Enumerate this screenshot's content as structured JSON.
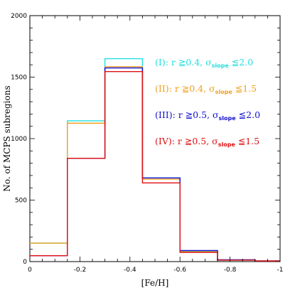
{
  "chart_data": {
    "type": "histogram",
    "xlabel": "[Fe/H]",
    "ylabel": "No. of MCPS subregions",
    "xlim": [
      0,
      -1
    ],
    "ylim": [
      0,
      2000
    ],
    "x_ticks": [
      0,
      -0.2,
      -0.4,
      -0.6,
      -0.8,
      -1
    ],
    "x_tick_labels": [
      "0",
      "-0.2",
      "-0.4",
      "-0.6",
      "-0.8",
      "-1"
    ],
    "y_ticks": [
      0,
      500,
      1000,
      1500,
      2000
    ],
    "y_tick_labels": [
      "0",
      "500",
      "1000",
      "1500",
      "2000"
    ],
    "bin_edges": [
      0,
      -0.15,
      -0.3,
      -0.45,
      -0.6,
      -0.75,
      -0.9,
      -1.0
    ],
    "series": [
      {
        "color": "#22e0e0",
        "values": [
          150,
          1145,
          1650,
          680,
          85,
          12,
          5
        ]
      },
      {
        "color": "#f0a020",
        "values": [
          150,
          1125,
          1585,
          670,
          80,
          12,
          5
        ]
      },
      {
        "color": "#1010d0",
        "values": [
          48,
          840,
          1575,
          680,
          90,
          15,
          5
        ]
      },
      {
        "color": "#e01010",
        "values": [
          48,
          840,
          1545,
          640,
          75,
          12,
          5
        ]
      }
    ],
    "legend": [
      {
        "id": "I",
        "color": "#22e0e0",
        "prefix": "(I): r ≧0.4, σ",
        "sub": "slope",
        "suffix": " ≦2.0"
      },
      {
        "id": "II",
        "color": "#f0a020",
        "prefix": "(II): r ≧0.4, σ",
        "sub": "slope",
        "suffix": " ≦1.5"
      },
      {
        "id": "III",
        "color": "#1010d0",
        "prefix": "(III): r ≧0.5, σ",
        "sub": "slope",
        "suffix": " ≦2.0"
      },
      {
        "id": "IV",
        "color": "#e01010",
        "prefix": "(IV): r ≧0.5, σ",
        "sub": "slope",
        "suffix": " ≦1.5"
      }
    ],
    "legend_placement": "upper-right",
    "grid": false
  }
}
